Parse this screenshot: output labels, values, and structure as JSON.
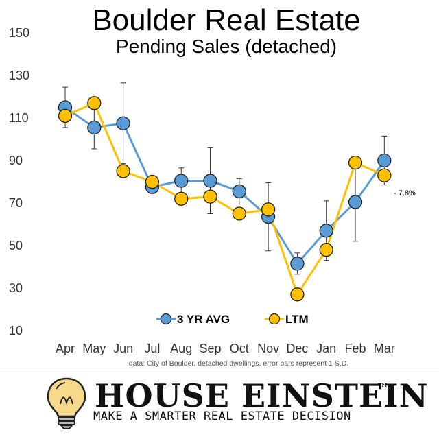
{
  "chart_data": {
    "type": "line",
    "title": "Boulder Real Estate",
    "subtitle": "Pending Sales (detached)",
    "categories": [
      "Apr",
      "May",
      "Jun",
      "Jul",
      "Aug",
      "Sep",
      "Oct",
      "Nov",
      "Dec",
      "Jan",
      "Feb",
      "Mar"
    ],
    "yticks": [
      10,
      30,
      50,
      70,
      90,
      110,
      130,
      150
    ],
    "ylim": [
      10,
      150
    ],
    "grid": false,
    "legend_position": "bottom-center",
    "series": [
      {
        "name": "3 YR AVG",
        "color": "#5b9bd5",
        "values": [
          115,
          105.5,
          107.5,
          77.5,
          80.5,
          80.5,
          75.5,
          63.5,
          41.5,
          57,
          70.5,
          90
        ],
        "error": [
          9.5,
          10,
          19,
          3,
          6,
          15.5,
          6,
          16,
          5,
          14,
          18.5,
          11.5
        ]
      },
      {
        "name": "LTM",
        "color": "#ffc000",
        "values": [
          111,
          117,
          85,
          80,
          72,
          73,
          65,
          67,
          27,
          48,
          89,
          83
        ]
      }
    ],
    "annotation": "- 7.8%",
    "source_note": "data: City of Boulder, detached dwellings, error bars represent 1 S.D."
  },
  "footer": {
    "brand": "HOUSE EINSTEIN",
    "trademark": "™",
    "tagline": "MAKE A SMARTER REAL ESTATE DECISION",
    "logo_icon": "lightbulb-icon"
  }
}
